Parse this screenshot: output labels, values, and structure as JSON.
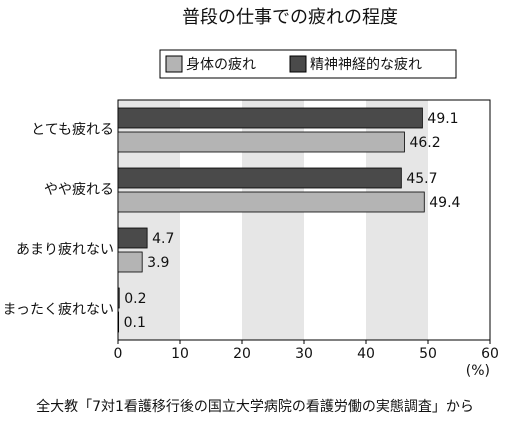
{
  "chart_data": {
    "type": "bar",
    "orientation": "horizontal",
    "title": "普段の仕事での疲れの程度",
    "categories": [
      "とても疲れる",
      "やや疲れる",
      "あまり疲れない",
      "まったく疲れない"
    ],
    "series": [
      {
        "name": "身体の疲れ",
        "color": "#b4b4b4",
        "values": [
          46.2,
          49.4,
          3.9,
          0.1
        ]
      },
      {
        "name": "精神神経的な疲れ",
        "color": "#4a4a4a",
        "values": [
          49.1,
          45.7,
          4.7,
          0.2
        ]
      }
    ],
    "xlim": [
      0,
      60
    ],
    "xticks": [
      0,
      10,
      20,
      30,
      40,
      50,
      60
    ],
    "x_unit": "(%)",
    "source": "全大教「7対1看護移行後の国立大学病院の看護労働の実態調査」から"
  }
}
